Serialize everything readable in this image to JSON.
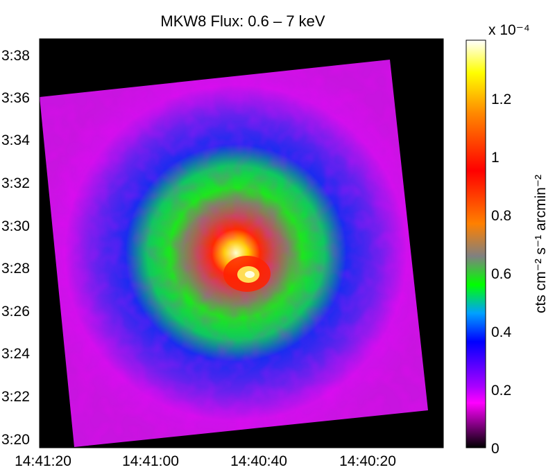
{
  "chart_data": {
    "type": "heatmap",
    "title": "MKW8 Flux: 0.6 – 7 keV",
    "xlabel": "",
    "ylabel": "",
    "x_ticks": [
      "14:41:20",
      "14:41:00",
      "14:40:40",
      "14:40:20"
    ],
    "y_ticks": [
      "3:38",
      "3:36",
      "3:34",
      "3:32",
      "3:30",
      "3:28",
      "3:26",
      "3:24",
      "3:22",
      "3:20"
    ],
    "colorbar": {
      "label": "cts cm⁻² s⁻¹ arcmin⁻²",
      "multiplier": "x 10⁻⁴",
      "ticks": [
        "0",
        "0.2",
        "0.4",
        "0.6",
        "0.8",
        "1",
        "1.2"
      ],
      "range": [
        0,
        1.38
      ],
      "colormap": [
        "#000000",
        "#ff00ff",
        "#0000ff",
        "#00ff00",
        "#ff8c00",
        "#ff0000",
        "#ffff00",
        "#ffffff"
      ]
    },
    "peak_value": 1.35,
    "background_value": 0.15,
    "grid": false,
    "outside_field_value": 0
  }
}
